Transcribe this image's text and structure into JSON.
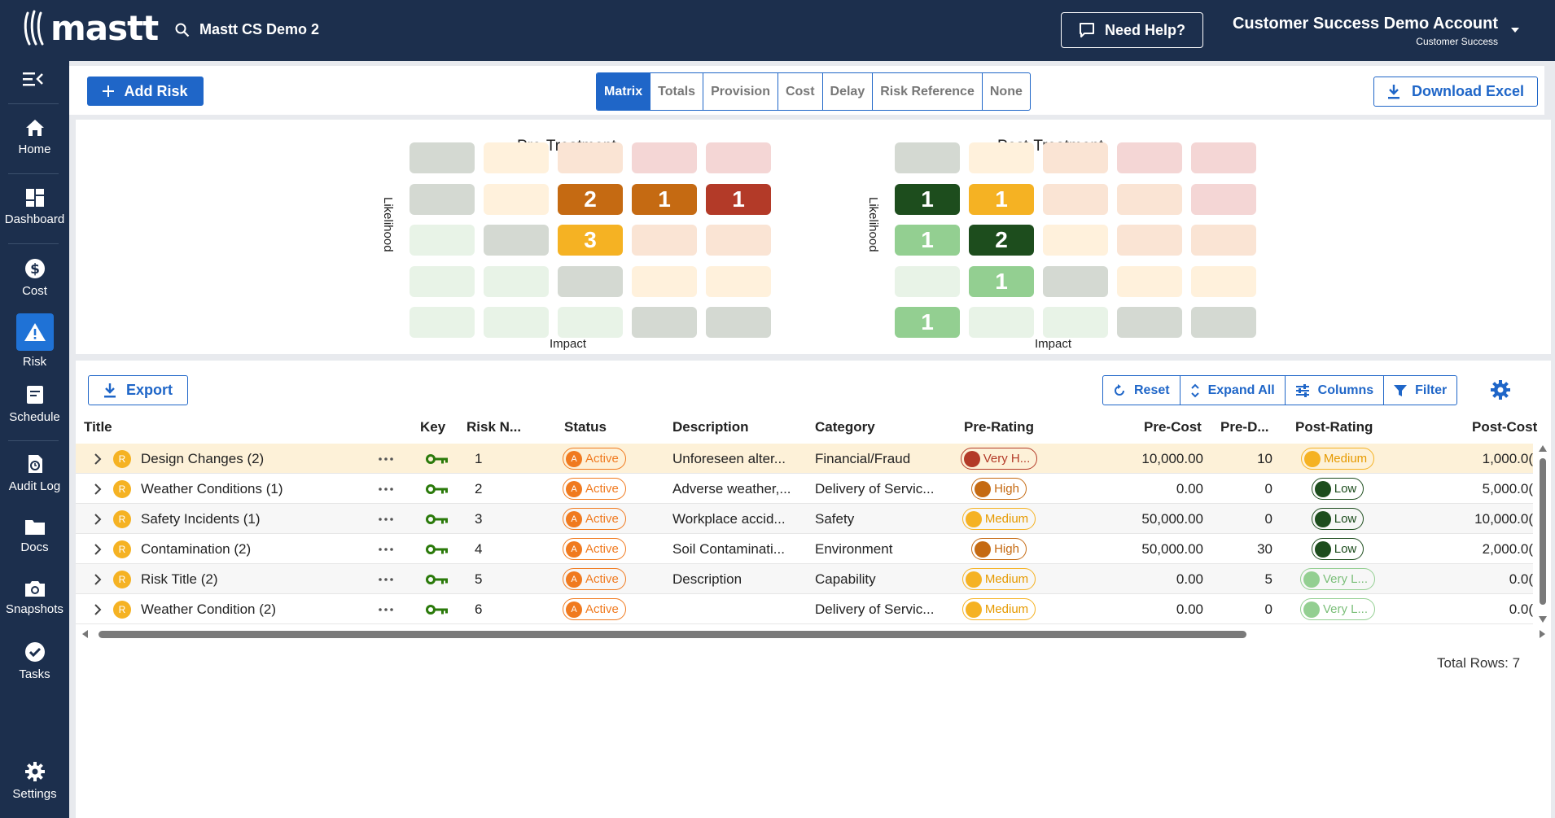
{
  "topbar": {
    "logo": "mastt",
    "project": "Mastt CS Demo 2",
    "help": "Need Help?",
    "account_name": "Customer Success Demo Account",
    "account_role": "Customer Success"
  },
  "sidebar": {
    "items": [
      {
        "label": "Home",
        "icon": "home-icon"
      },
      {
        "label": "Dashboard",
        "icon": "dashboard-icon"
      },
      {
        "label": "Cost",
        "icon": "dollar-icon"
      },
      {
        "label": "Risk",
        "icon": "warning-icon",
        "active": true
      },
      {
        "label": "Schedule",
        "icon": "schedule-icon"
      },
      {
        "label": "Audit Log",
        "icon": "audit-log-icon"
      },
      {
        "label": "Docs",
        "icon": "folder-icon"
      },
      {
        "label": "Snapshots",
        "icon": "camera-icon"
      },
      {
        "label": "Tasks",
        "icon": "check-circle-icon"
      },
      {
        "label": "Settings",
        "icon": "gear-icon"
      }
    ]
  },
  "toolbar": {
    "add_risk": "Add Risk",
    "tabs": [
      "Matrix",
      "Totals",
      "Provision",
      "Cost",
      "Delay",
      "Risk Reference",
      "None"
    ],
    "active_tab": "Matrix",
    "download": "Download Excel"
  },
  "matrix": {
    "pre": {
      "title": "Pre-Treatment",
      "ylabel": "Likelihood",
      "xlabel": "Impact",
      "colors": [
        [
          "#d4d9d2",
          "#fff1dc",
          "#fae4d4",
          "#f4d6d5",
          "#f4d6d5"
        ],
        [
          "#d4d9d2",
          "#fff1dc",
          "#c56a12",
          "#c56a12",
          "#b33a28"
        ],
        [
          "#e8f3e7",
          "#d4d9d2",
          "#f5b223",
          "#fae4d4",
          "#fae4d4"
        ],
        [
          "#e8f3e7",
          "#e8f3e7",
          "#d4d9d2",
          "#fff1dc",
          "#fff1dc"
        ],
        [
          "#e8f3e7",
          "#e8f3e7",
          "#e8f3e7",
          "#d4d9d2",
          "#d4d9d2"
        ]
      ],
      "counts": [
        [
          "",
          "",
          "",
          "",
          ""
        ],
        [
          "",
          "",
          "2",
          "1",
          "1"
        ],
        [
          "",
          "",
          "3",
          "",
          ""
        ],
        [
          "",
          "",
          "",
          "",
          ""
        ],
        [
          "",
          "",
          "",
          "",
          ""
        ]
      ]
    },
    "post": {
      "title": "Post-Treatment",
      "ylabel": "Likelihood",
      "xlabel": "Impact",
      "colors": [
        [
          "#d4d9d2",
          "#fff1dc",
          "#fae4d4",
          "#f4d6d5",
          "#f4d6d5"
        ],
        [
          "#1d4d1d",
          "#f5b223",
          "#fae4d4",
          "#fae4d4",
          "#f4d6d5"
        ],
        [
          "#93cf91",
          "#1d4d1d",
          "#fff1dc",
          "#fae4d4",
          "#fae4d4"
        ],
        [
          "#e8f3e7",
          "#93cf91",
          "#d4d9d2",
          "#fff1dc",
          "#fff1dc"
        ],
        [
          "#93cf91",
          "#e8f3e7",
          "#e8f3e7",
          "#d4d9d2",
          "#d4d9d2"
        ]
      ],
      "counts": [
        [
          "",
          "",
          "",
          "",
          ""
        ],
        [
          "1",
          "1",
          "",
          "",
          ""
        ],
        [
          "1",
          "2",
          "",
          "",
          ""
        ],
        [
          "",
          "1",
          "",
          "",
          ""
        ],
        [
          "1",
          "",
          "",
          "",
          ""
        ]
      ]
    }
  },
  "grid": {
    "export": "Export",
    "actions": [
      "Reset",
      "Expand All",
      "Columns",
      "Filter"
    ],
    "columns": [
      "Title",
      "Key",
      "Risk N...",
      "Status",
      "Description",
      "Category",
      "Pre-Rating",
      "Pre-Cost",
      "Pre-D...",
      "Post-Rating",
      "Post-Cost"
    ],
    "rows": [
      {
        "title": "Design Changes",
        "count": "(2)",
        "icon": "R",
        "num": "1",
        "status": "Active",
        "desc": "Unforeseen alter...",
        "cat": "Financial/Fraud",
        "pre_rating": "Very H...",
        "pre_cost": "10,000.00",
        "pre_d": "10",
        "post_rating": "Medium",
        "post_cost": "1,000.0("
      },
      {
        "title": "Weather Conditions",
        "count": "(1)",
        "icon": "R",
        "num": "2",
        "status": "Active",
        "desc": "Adverse weather,...",
        "cat": "Delivery of Servic...",
        "pre_rating": "High",
        "pre_cost": "0.00",
        "pre_d": "0",
        "post_rating": "Low",
        "post_cost": "5,000.0("
      },
      {
        "title": "Safety Incidents",
        "count": "(1)",
        "icon": "R",
        "num": "3",
        "status": "Active",
        "desc": "Workplace accid...",
        "cat": "Safety",
        "pre_rating": "Medium",
        "pre_cost": "50,000.00",
        "pre_d": "0",
        "post_rating": "Low",
        "post_cost": "10,000.0("
      },
      {
        "title": "Contamination",
        "count": "(2)",
        "icon": "R",
        "num": "4",
        "status": "Active",
        "desc": "Soil Contaminati...",
        "cat": "Environment",
        "pre_rating": "High",
        "pre_cost": "50,000.00",
        "pre_d": "30",
        "post_rating": "Low",
        "post_cost": "2,000.0("
      },
      {
        "title": "Risk Title",
        "count": "(2)",
        "icon": "R",
        "num": "5",
        "status": "Active",
        "desc": "Description",
        "cat": "Capability",
        "pre_rating": "Medium",
        "pre_cost": "0.00",
        "pre_d": "5",
        "post_rating": "Very L...",
        "post_cost": "0.0("
      },
      {
        "title": "Weather Condition",
        "count": "(2)",
        "icon": "R",
        "num": "6",
        "status": "Active",
        "desc": "",
        "cat": "Delivery of Servic...",
        "pre_rating": "Medium",
        "pre_cost": "0.00",
        "pre_d": "0",
        "post_rating": "Very L...",
        "post_cost": "0.0("
      }
    ],
    "total": "Total Rows: 7"
  },
  "colors": {
    "navy": "#1c2f4d",
    "accent": "#1f66c8",
    "status_active": "#f07a1f",
    "rating": {
      "Very H...": {
        "dot": "#b33a28",
        "border": "#b33a28",
        "text": "#b33a28"
      },
      "High": {
        "dot": "#c56a12",
        "border": "#c56a12",
        "text": "#c56a12"
      },
      "Medium": {
        "dot": "#f5b223",
        "border": "#f5b223",
        "text": "#e69a00"
      },
      "Low": {
        "dot": "#1d4d1d",
        "border": "#1d4d1d",
        "text": "#1d4d1d"
      },
      "Very L...": {
        "dot": "#93cf91",
        "border": "#93cf91",
        "text": "#7bbf79"
      }
    }
  }
}
